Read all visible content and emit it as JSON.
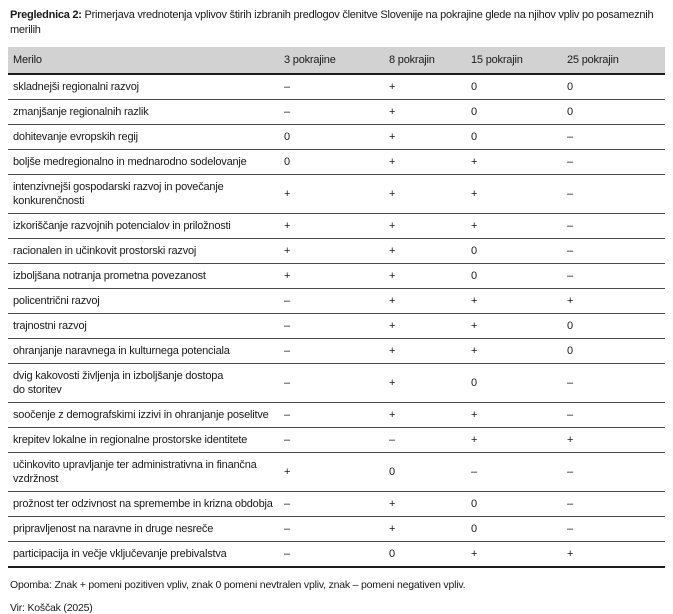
{
  "page": {
    "title_label": "Preglednica 2:",
    "title_text": " Primerjava vrednotenja vplivov štirih izbranih predlogov členitve Slovenije na pokrajine glede na njihov vpliv po posameznih merilih",
    "note": "Opomba: Znak + pomeni pozitiven vpliv, znak 0 pomeni nevtralen vpliv, znak – pomeni negativen vpliv.",
    "source": "Vir: Koščak (2025)"
  },
  "colors": {
    "header_bg": "#d2d2d2",
    "border_strong": "#1c1c1c",
    "border_row": "#4b4b4b",
    "text": "#1a1a1a"
  },
  "table": {
    "columns": [
      "Merilo",
      "3 pokrajine",
      "8 pokrajin",
      "15 pokrajin",
      "25 pokrajin"
    ],
    "rows": [
      {
        "merilo": "skladnejši regionalni razvoj",
        "values": [
          "–",
          "+",
          "0",
          "0"
        ]
      },
      {
        "merilo": "zmanjšanje regionalnih razlik",
        "values": [
          "–",
          "+",
          "0",
          "0"
        ]
      },
      {
        "merilo": "dohitevanje evropskih regij",
        "values": [
          "0",
          "+",
          "0",
          "–"
        ]
      },
      {
        "merilo": "boljše medregionalno in mednarodno sodelovanje",
        "values": [
          "0",
          "+",
          "+",
          "–"
        ]
      },
      {
        "merilo": "intenzivnejši gospodarski razvoj in povečanje\nkonkurenčnosti",
        "values": [
          "+",
          "+",
          "+",
          "–"
        ]
      },
      {
        "merilo": "izkoriščanje razvojnih potencialov in priložnosti",
        "values": [
          "+",
          "+",
          "+",
          "–"
        ]
      },
      {
        "merilo": "racionalen in učinkovit prostorski razvoj",
        "values": [
          "+",
          "+",
          "0",
          "–"
        ]
      },
      {
        "merilo": "izboljšana notranja prometna povezanost",
        "values": [
          "+",
          "+",
          "0",
          "–"
        ]
      },
      {
        "merilo": "policentrični razvoj",
        "values": [
          "–",
          "+",
          "+",
          "+"
        ]
      },
      {
        "merilo": "trajnostni razvoj",
        "values": [
          "–",
          "+",
          "+",
          "0"
        ]
      },
      {
        "merilo": "ohranjanje naravnega in kulturnega potenciala",
        "values": [
          "–",
          "+",
          "+",
          "0"
        ]
      },
      {
        "merilo": "dvig kakovosti življenja in izboljšanje dostopa\ndo storitev",
        "values": [
          "–",
          "+",
          "0",
          "–"
        ]
      },
      {
        "merilo": "soočenje z demografskimi izzivi in ohranjanje poselitve",
        "values": [
          "–",
          "+",
          "+",
          "–"
        ]
      },
      {
        "merilo": "krepitev lokalne in regionalne prostorske identitete",
        "values": [
          "–",
          "–",
          "+",
          "+"
        ]
      },
      {
        "merilo": "učinkovito upravljanje ter administrativna in finančna\nvzdržnost",
        "values": [
          "+",
          "0",
          "–",
          "–"
        ]
      },
      {
        "merilo": "prožnost ter odzivnost na spremembe in krizna obdobja",
        "values": [
          "–",
          "+",
          "0",
          "–"
        ]
      },
      {
        "merilo": "pripravljenost na naravne in druge nesreče",
        "values": [
          "–",
          "+",
          "0",
          "–"
        ]
      },
      {
        "merilo": "participacija in večje vključevanje prebivalstva",
        "values": [
          "–",
          "0",
          "+",
          "+"
        ]
      }
    ]
  }
}
